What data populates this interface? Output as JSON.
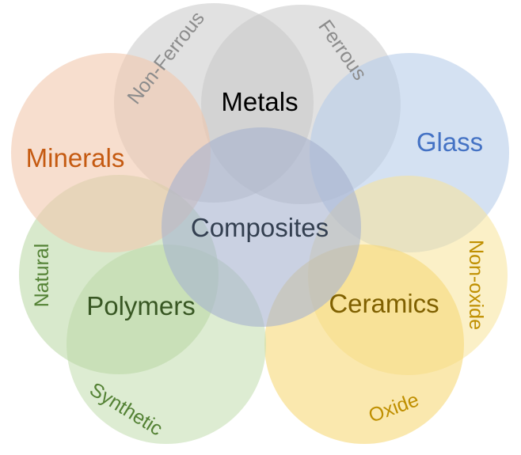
{
  "diagram": {
    "circles": [
      {
        "id": "non-ferrous",
        "fill": "#c9c9c9",
        "opacity": 0.55
      },
      {
        "id": "ferrous",
        "fill": "#c9c9c9",
        "opacity": 0.55
      },
      {
        "id": "glass",
        "fill": "#b7cde9",
        "opacity": 0.6
      },
      {
        "id": "non-oxide",
        "fill": "#f7e399",
        "opacity": 0.55
      },
      {
        "id": "oxide",
        "fill": "#f6d978",
        "opacity": 0.6
      },
      {
        "id": "synthetic",
        "fill": "#c6e0b4",
        "opacity": 0.6
      },
      {
        "id": "natural",
        "fill": "#b8d7a3",
        "opacity": 0.55
      },
      {
        "id": "minerals",
        "fill": "#f2c8ad",
        "opacity": 0.6
      },
      {
        "id": "composites",
        "fill": "#a7b3cf",
        "opacity": 0.6
      }
    ],
    "labels": {
      "metals": "Metals",
      "non_ferrous": "Non-Ferrous",
      "ferrous": "Ferrous",
      "glass": "Glass",
      "minerals": "Minerals",
      "composites": "Composites",
      "natural": "Natural",
      "polymers": "Polymers",
      "ceramics": "Ceramics",
      "non_oxide": "Non-oxide",
      "synthetic": "Synthetic",
      "oxide": "Oxide"
    },
    "colors": {
      "metals": "#000000",
      "sub_metals": "#8c8c8c",
      "glass": "#4472c4",
      "minerals": "#c55a11",
      "composites": "#333f50",
      "polymers": "#385723",
      "sub_polymers": "#548235",
      "ceramics": "#7f6000",
      "sub_ceramics": "#bf8f00"
    }
  }
}
